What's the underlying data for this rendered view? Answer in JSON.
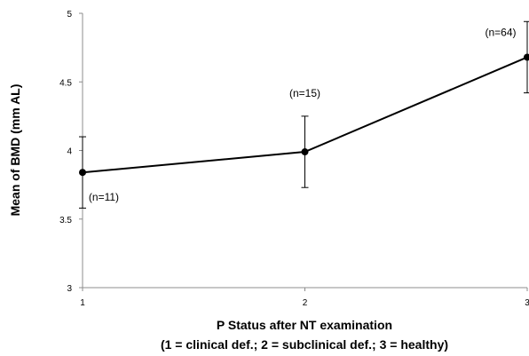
{
  "chart_data": {
    "type": "line",
    "x": [
      1,
      2,
      3
    ],
    "x_tick_labels": [
      "1",
      "2",
      "3"
    ],
    "y_tick_labels": [
      "3",
      "3.5",
      "4",
      "4.5",
      "5"
    ],
    "ylim": [
      3,
      5
    ],
    "xlim": [
      1,
      3
    ],
    "ylabel": "Mean of BMD (mm AL)",
    "xlabel_line1": "P Status after NT examination",
    "xlabel_line2": "(1 = clinical def.; 2 = subclinical def.; 3 = healthy)",
    "series": [
      {
        "values": [
          3.84,
          3.99,
          4.68
        ],
        "error_low": [
          3.58,
          3.73,
          4.42
        ],
        "error_high": [
          4.1,
          4.25,
          4.94
        ],
        "annotations": [
          "(n=11)",
          "(n=15)",
          "(n=64)"
        ]
      }
    ],
    "grid": false,
    "legend": "none",
    "line_color": "#000000"
  }
}
